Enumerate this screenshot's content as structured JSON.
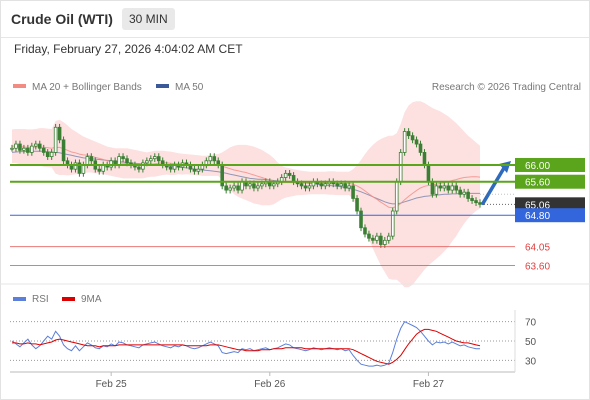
{
  "header": {
    "instrument": "Crude Oil (WTI)",
    "timeframe": "30 MIN",
    "datetime": "Friday, February 27, 2026 4:04:02 AM CET"
  },
  "legend": {
    "ma20_label": "MA 20 + Bollinger Bands",
    "ma50_label": "MA 50",
    "credit": "Research © 2026 Trading Central",
    "ma20_color": "#f28b82",
    "ma50_color": "#3b5998"
  },
  "rsi_legend": {
    "rsi_label": "RSI",
    "ma9_label": "9MA",
    "rsi_color": "#5b7fdb",
    "ma9_color": "#dd0000"
  },
  "colors": {
    "resistance": "#5aa51c",
    "support": "#e04040",
    "pivot": "#3366dd",
    "current": "#333333",
    "candle_up": "#3a7f33",
    "candle_down": "#3a7f33",
    "band_fill": "#fde0e0",
    "arrow": "#2f6bbd"
  },
  "chart_data": [
    {
      "type": "line",
      "name": "price",
      "x_ticks": [
        "Feb 25",
        "Feb 26",
        "Feb 27"
      ],
      "ylim": [
        63.3,
        67.6
      ],
      "levels": [
        {
          "value": 66.0,
          "label": "66.00",
          "kind": "resistance"
        },
        {
          "value": 65.6,
          "label": "65.60",
          "kind": "resistance"
        },
        {
          "value": 65.06,
          "label": "65.06",
          "kind": "current"
        },
        {
          "value": 64.8,
          "label": "64.80",
          "kind": "pivot"
        },
        {
          "value": 64.05,
          "label": "64.05",
          "kind": "support"
        },
        {
          "value": 63.6,
          "label": "63.60",
          "kind": "support"
        }
      ],
      "close": [
        66.4,
        66.5,
        66.35,
        66.4,
        66.3,
        66.45,
        66.5,
        66.4,
        66.3,
        66.2,
        66.3,
        66.9,
        66.6,
        66.1,
        66.0,
        65.9,
        66.05,
        65.8,
        66.0,
        66.2,
        66.1,
        65.9,
        65.85,
        66.0,
        65.95,
        66.1,
        66.0,
        66.2,
        66.15,
        66.05,
        66.0,
        65.95,
        65.9,
        66.05,
        66.1,
        66.15,
        66.2,
        66.1,
        66.0,
        65.95,
        65.9,
        66.0,
        65.95,
        66.05,
        66.0,
        65.9,
        65.85,
        65.9,
        66.0,
        66.1,
        66.2,
        66.1,
        66.0,
        65.5,
        65.4,
        65.45,
        65.5,
        65.4,
        65.6,
        65.5,
        65.55,
        65.45,
        65.5,
        65.55,
        65.6,
        65.5,
        65.55,
        65.6,
        65.7,
        65.8,
        65.75,
        65.6,
        65.55,
        65.5,
        65.45,
        65.5,
        65.6,
        65.55,
        65.5,
        65.55,
        65.6,
        65.55,
        65.5,
        65.55,
        65.45,
        65.5,
        65.2,
        64.9,
        64.5,
        64.35,
        64.25,
        64.2,
        64.3,
        64.1,
        64.2,
        64.3,
        64.9,
        65.6,
        66.3,
        66.8,
        66.7,
        66.6,
        66.5,
        66.3,
        66.0,
        65.6,
        65.3,
        65.5,
        65.45,
        65.5,
        65.4,
        65.5,
        65.4,
        65.3,
        65.35,
        65.2,
        65.15,
        65.1,
        65.06
      ],
      "ma20": [
        66.45,
        66.45,
        66.44,
        66.43,
        66.42,
        66.42,
        66.43,
        66.43,
        66.42,
        66.41,
        66.4,
        66.42,
        66.42,
        66.39,
        66.35,
        66.31,
        66.29,
        66.26,
        66.24,
        66.23,
        66.21,
        66.18,
        66.16,
        66.13,
        66.1,
        66.08,
        66.06,
        66.05,
        66.04,
        66.04,
        66.03,
        66.02,
        66.01,
        66.0,
        66.0,
        66.02,
        66.03,
        66.04,
        66.05,
        66.05,
        66.04,
        66.03,
        66.03,
        66.02,
        66.02,
        66.01,
        66.0,
        65.99,
        65.98,
        65.98,
        65.99,
        66.0,
        66.0,
        65.97,
        65.94,
        65.91,
        65.88,
        65.86,
        65.84,
        65.82,
        65.79,
        65.76,
        65.73,
        65.7,
        65.67,
        65.64,
        65.61,
        65.59,
        65.58,
        65.58,
        65.58,
        65.58,
        65.58,
        65.57,
        65.57,
        65.57,
        65.57,
        65.57,
        65.57,
        65.57,
        65.57,
        65.57,
        65.56,
        65.56,
        65.56,
        65.56,
        65.54,
        65.5,
        65.45,
        65.38,
        65.31,
        65.24,
        65.18,
        65.11,
        65.05,
        64.99,
        64.98,
        65.01,
        65.08,
        65.17,
        65.25,
        65.32,
        65.39,
        65.45,
        65.49,
        65.51,
        65.52,
        65.54,
        65.56,
        65.58,
        65.6,
        65.63,
        65.65,
        65.68,
        65.7,
        65.71,
        65.72,
        65.72,
        65.71
      ],
      "ma50": [
        66.3,
        66.31,
        66.32,
        66.32,
        66.33,
        66.33,
        66.33,
        66.33,
        66.33,
        66.32,
        66.31,
        66.3,
        66.29,
        66.27,
        66.25,
        66.23,
        66.21,
        66.19,
        66.17,
        66.16,
        66.15,
        66.14,
        66.13,
        66.12,
        66.11,
        66.1,
        66.09,
        66.08,
        66.07,
        66.06,
        66.05,
        66.04,
        66.03,
        66.03,
        66.02,
        66.02,
        66.01,
        66.0,
        65.99,
        65.98,
        65.97,
        65.96,
        65.95,
        65.94,
        65.93,
        65.92,
        65.9,
        65.89,
        65.88,
        65.87,
        65.86,
        65.85,
        65.84,
        65.82,
        65.8,
        65.78,
        65.76,
        65.74,
        65.72,
        65.7,
        65.68,
        65.67,
        65.66,
        65.66,
        65.65,
        65.64,
        65.63,
        65.62,
        65.61,
        65.6,
        65.59,
        65.59,
        65.58,
        65.58,
        65.57,
        65.56,
        65.55,
        65.54,
        65.53,
        65.52,
        65.51,
        65.5,
        65.49,
        65.48,
        65.46,
        65.44,
        65.42,
        65.39,
        65.36,
        65.32,
        65.28,
        65.24,
        65.2,
        65.16,
        65.12,
        65.09,
        65.07,
        65.07,
        65.09,
        65.12,
        65.15,
        65.18,
        65.21,
        65.23,
        65.25,
        65.26,
        65.27,
        65.28,
        65.29,
        65.3,
        65.3,
        65.31,
        65.31,
        65.32,
        65.32,
        65.32,
        65.32,
        65.32,
        65.32
      ],
      "bb_upper": [
        66.85,
        66.86,
        66.86,
        66.86,
        66.85,
        66.85,
        66.86,
        66.88,
        66.88,
        66.87,
        66.86,
        67.05,
        67.08,
        67.02,
        66.95,
        66.86,
        66.8,
        66.74,
        66.68,
        66.64,
        66.6,
        66.56,
        66.52,
        66.48,
        66.44,
        66.42,
        66.4,
        66.4,
        66.4,
        66.4,
        66.38,
        66.36,
        66.34,
        66.32,
        66.3,
        66.32,
        66.34,
        66.34,
        66.34,
        66.33,
        66.32,
        66.3,
        66.28,
        66.27,
        66.26,
        66.25,
        66.24,
        66.23,
        66.22,
        66.22,
        66.24,
        66.26,
        66.26,
        66.3,
        66.36,
        66.42,
        66.46,
        66.48,
        66.48,
        66.48,
        66.46,
        66.44,
        66.4,
        66.36,
        66.3,
        66.24,
        66.16,
        66.06,
        65.98,
        65.94,
        65.92,
        65.9,
        65.88,
        65.86,
        65.85,
        65.84,
        65.84,
        65.84,
        65.84,
        65.84,
        65.85,
        65.85,
        65.84,
        65.84,
        65.84,
        65.84,
        65.9,
        66.0,
        66.12,
        66.26,
        66.38,
        66.48,
        66.56,
        66.62,
        66.66,
        66.7,
        66.7,
        66.76,
        66.98,
        67.26,
        67.42,
        67.5,
        67.52,
        67.52,
        67.48,
        67.42,
        67.36,
        67.32,
        67.28,
        67.22,
        67.16,
        67.08,
        67.0,
        66.9,
        66.8,
        66.7,
        66.62,
        66.54,
        66.46
      ],
      "bb_lower": [
        66.05,
        66.04,
        66.02,
        66.0,
        65.99,
        65.99,
        66.0,
        65.98,
        65.96,
        65.95,
        65.94,
        65.79,
        65.76,
        65.76,
        65.75,
        65.76,
        65.78,
        65.78,
        65.8,
        65.82,
        65.82,
        65.8,
        65.8,
        65.78,
        65.76,
        65.74,
        65.72,
        65.7,
        65.68,
        65.68,
        65.68,
        65.68,
        65.68,
        65.68,
        65.7,
        65.72,
        65.72,
        65.74,
        65.76,
        65.77,
        65.76,
        65.76,
        65.78,
        65.77,
        65.78,
        65.77,
        65.76,
        65.75,
        65.74,
        65.74,
        65.74,
        65.74,
        65.74,
        65.64,
        65.52,
        65.4,
        65.3,
        65.24,
        65.2,
        65.16,
        65.12,
        65.08,
        65.06,
        65.04,
        65.04,
        65.04,
        65.06,
        65.12,
        65.18,
        65.22,
        65.24,
        65.26,
        65.28,
        65.28,
        65.29,
        65.3,
        65.3,
        65.3,
        65.3,
        65.3,
        65.29,
        65.29,
        65.28,
        65.28,
        65.28,
        65.28,
        65.18,
        65.0,
        64.78,
        64.5,
        64.24,
        64.0,
        63.8,
        63.6,
        63.44,
        63.28,
        63.26,
        63.26,
        63.18,
        63.08,
        63.08,
        63.14,
        63.26,
        63.38,
        63.5,
        63.6,
        63.68,
        63.76,
        63.84,
        63.94,
        64.04,
        64.18,
        64.3,
        64.46,
        64.6,
        64.72,
        64.82,
        64.9,
        64.96
      ]
    },
    {
      "type": "line",
      "name": "rsi",
      "y_ticks": [
        70,
        50,
        30
      ],
      "ylim": [
        20,
        80
      ],
      "x_ticks": [
        "Feb 25",
        "Feb 26",
        "Feb 27"
      ],
      "series": [
        {
          "name": "RSI",
          "values": [
            50,
            47,
            44,
            48,
            52,
            46,
            42,
            45,
            50,
            55,
            52,
            60,
            55,
            46,
            42,
            40,
            45,
            40,
            44,
            48,
            46,
            43,
            42,
            45,
            44,
            47,
            45,
            49,
            48,
            46,
            45,
            44,
            43,
            46,
            47,
            48,
            49,
            47,
            45,
            44,
            43,
            45,
            44,
            46,
            45,
            43,
            42,
            43,
            45,
            47,
            49,
            47,
            45,
            38,
            37,
            38,
            39,
            38,
            42,
            41,
            42,
            40,
            41,
            42,
            43,
            41,
            42,
            43,
            45,
            47,
            46,
            43,
            42,
            41,
            40,
            41,
            43,
            42,
            41,
            42,
            43,
            42,
            41,
            42,
            40,
            41,
            35,
            30,
            26,
            25,
            24,
            24,
            25,
            24,
            25,
            27,
            38,
            52,
            63,
            70,
            68,
            66,
            64,
            60,
            55,
            50,
            46,
            49,
            48,
            49,
            47,
            49,
            47,
            45,
            46,
            44,
            43,
            42,
            42
          ]
        },
        {
          "name": "9MA",
          "values": [
            48,
            48,
            47,
            47,
            48,
            47,
            47,
            46,
            47,
            48,
            49,
            51,
            52,
            51,
            50,
            49,
            48,
            47,
            46,
            45,
            45,
            45,
            44,
            45,
            45,
            45,
            45,
            46,
            46,
            46,
            46,
            46,
            46,
            46,
            46,
            46,
            46,
            46,
            46,
            46,
            46,
            46,
            46,
            46,
            45,
            45,
            45,
            45,
            45,
            45,
            46,
            46,
            46,
            45,
            44,
            43,
            42,
            41,
            41,
            40,
            40,
            40,
            40,
            41,
            41,
            41,
            42,
            42,
            42,
            43,
            43,
            43,
            43,
            43,
            42,
            42,
            42,
            42,
            42,
            42,
            42,
            42,
            42,
            42,
            42,
            42,
            41,
            39,
            37,
            35,
            33,
            31,
            29,
            28,
            27,
            26,
            28,
            31,
            35,
            41,
            47,
            52,
            57,
            60,
            62,
            62,
            61,
            60,
            58,
            56,
            54,
            52,
            50,
            49,
            48,
            48,
            47,
            46,
            45
          ]
        }
      ]
    }
  ]
}
